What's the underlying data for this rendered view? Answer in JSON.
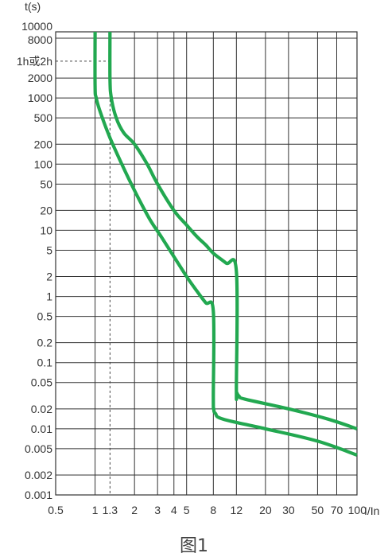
{
  "chart_data": {
    "type": "line",
    "caption": "图1",
    "xlabel": "I/In",
    "ylabel": "t(s)",
    "x_scale": "log",
    "y_scale": "log",
    "xlim": [
      0.5,
      100
    ],
    "ylim": [
      0.001,
      10000
    ],
    "grid": true,
    "x_ticks": [
      {
        "v": 0.5,
        "label": "0.5"
      },
      {
        "v": 1,
        "label": "1"
      },
      {
        "v": 1.3,
        "label": "1.3"
      },
      {
        "v": 2,
        "label": "2"
      },
      {
        "v": 3,
        "label": "3"
      },
      {
        "v": 4,
        "label": "4"
      },
      {
        "v": 5,
        "label": "5"
      },
      {
        "v": 8,
        "label": "8"
      },
      {
        "v": 12,
        "label": "12"
      },
      {
        "v": 20,
        "label": "20"
      },
      {
        "v": 30,
        "label": "30"
      },
      {
        "v": 50,
        "label": "50"
      },
      {
        "v": 70,
        "label": "70"
      },
      {
        "v": 100,
        "label": "100"
      }
    ],
    "y_ticks": [
      {
        "v": 10000,
        "label": "10000"
      },
      {
        "v": 8000,
        "label": "8000"
      },
      {
        "v": 3600,
        "label": "1h或2h"
      },
      {
        "v": 2000,
        "label": "2000"
      },
      {
        "v": 1000,
        "label": "1000"
      },
      {
        "v": 500,
        "label": "500"
      },
      {
        "v": 200,
        "label": "200"
      },
      {
        "v": 100,
        "label": "100"
      },
      {
        "v": 50,
        "label": "50"
      },
      {
        "v": 20,
        "label": "20"
      },
      {
        "v": 10,
        "label": "10"
      },
      {
        "v": 5,
        "label": "5"
      },
      {
        "v": 2,
        "label": "2"
      },
      {
        "v": 1,
        "label": "1"
      },
      {
        "v": 0.5,
        "label": "0.5"
      },
      {
        "v": 0.2,
        "label": "0.2"
      },
      {
        "v": 0.1,
        "label": "0.1"
      },
      {
        "v": 0.05,
        "label": "0.05"
      },
      {
        "v": 0.02,
        "label": "0.02"
      },
      {
        "v": 0.01,
        "label": "0.01"
      },
      {
        "v": 0.005,
        "label": "0.005"
      },
      {
        "v": 0.002,
        "label": "0.002"
      },
      {
        "v": 0.001,
        "label": "0.001"
      }
    ],
    "reference_lines": [
      {
        "style": "dashed",
        "x": 1.3,
        "y": 3600
      }
    ],
    "series_color": "#22a850",
    "series": [
      {
        "x": [
          1.0,
          1.0,
          1.02,
          1.1,
          1.3,
          1.6,
          2.0,
          2.6,
          3.2,
          4.0,
          5.0,
          6.0,
          7.0,
          8.0,
          8.0,
          8.05,
          8.3,
          9.5,
          20,
          50,
          100
        ],
        "y": [
          10000,
          1500,
          1000,
          600,
          250,
          100,
          40,
          15,
          8,
          4,
          2,
          1.2,
          0.8,
          0.6,
          0.03,
          0.02,
          0.017,
          0.014,
          0.01,
          0.0065,
          0.004
        ]
      },
      {
        "x": [
          1.3,
          1.3,
          1.33,
          1.45,
          1.65,
          2.0,
          2.5,
          3.0,
          4.0,
          5.0,
          6.0,
          7.0,
          8.0,
          10.0,
          12.0,
          12.0,
          12.1,
          12.6,
          14.0,
          30,
          60,
          100
        ],
        "y": [
          10000,
          2000,
          1000,
          500,
          300,
          200,
          100,
          50,
          20,
          12,
          8,
          6,
          4.5,
          3.2,
          2.4,
          0.04,
          0.035,
          0.031,
          0.028,
          0.02,
          0.014,
          0.01
        ]
      }
    ]
  }
}
